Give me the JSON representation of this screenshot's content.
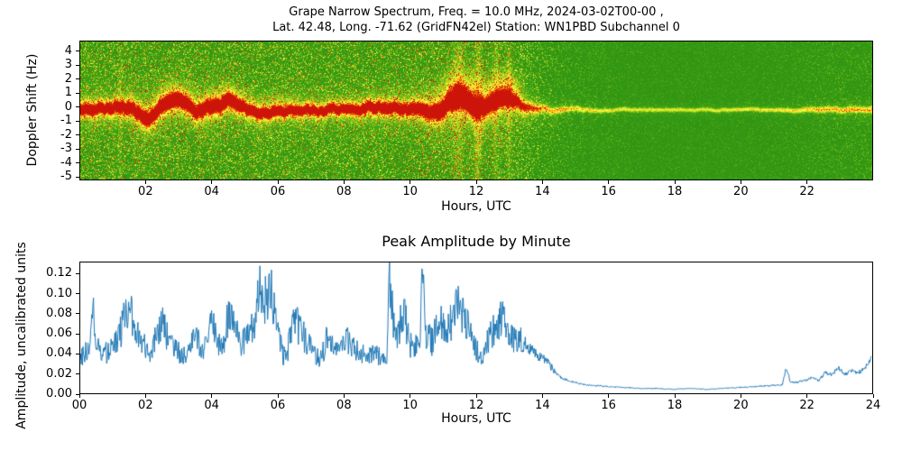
{
  "figure": {
    "background": "#ffffff",
    "text_color": "#000000"
  },
  "chart_data": [
    {
      "type": "heatmap",
      "panel": "doppler-spectrogram",
      "title": "Grape Narrow Spectrum, Freq. = 10.0 MHz, 2024-03-02T00-00 ,",
      "subtitle": "Lat.  42.48, Long. -71.62 (GridFN42el) Station: WN1PBD Subchannel 0",
      "xlabel": "Hours, UTC",
      "ylabel": "Doppler Shift (Hz)",
      "xlim": [
        0,
        24
      ],
      "ylim": [
        -5.25,
        4.75
      ],
      "xticks": [
        2,
        4,
        6,
        8,
        10,
        12,
        14,
        16,
        18,
        20,
        22
      ],
      "xtick_labels": [
        "02",
        "04",
        "06",
        "08",
        "10",
        "12",
        "14",
        "16",
        "18",
        "20",
        "22"
      ],
      "yticks": [
        4,
        3,
        2,
        1,
        0,
        -1,
        -2,
        -3,
        -4,
        -5
      ],
      "ytick_labels": [
        "4",
        "3",
        "2",
        "1",
        "0",
        "-1",
        "-2",
        "-3",
        "-4",
        "-5"
      ],
      "colormap": "green-yellow-orange-red",
      "colormap_stops": [
        [
          0,
          16,
          118,
          16
        ],
        [
          0.35,
          70,
          168,
          22
        ],
        [
          0.55,
          190,
          222,
          30
        ],
        [
          0.72,
          255,
          255,
          70
        ],
        [
          0.86,
          255,
          150,
          0
        ],
        [
          1,
          205,
          20,
          10
        ]
      ],
      "trace_step_hours": 0.5,
      "trace_center_hz": [
        -0.1,
        -0.2,
        -0.1,
        -0.25,
        -0.7,
        0.0,
        0.6,
        -0.4,
        -0.1,
        0.5,
        -0.1,
        -0.3,
        -0.25,
        -0.15,
        -0.25,
        -0.15,
        -0.2,
        -0.2,
        -0.2,
        -0.15,
        -0.1,
        -0.15,
        -0.05,
        0.6,
        0.1,
        0.2,
        0.7,
        -0.1,
        -0.2,
        -0.2,
        -0.2,
        -0.2,
        -0.2,
        -0.2,
        -0.2,
        -0.2,
        -0.2,
        -0.2,
        -0.2,
        -0.2,
        -0.2,
        -0.2,
        -0.2,
        -0.2,
        -0.2,
        -0.2,
        -0.2,
        -0.2,
        -0.2
      ],
      "noise_activity_hourly": [
        0.9,
        0.9,
        0.95,
        0.95,
        0.9,
        0.9,
        0.85,
        0.85,
        0.85,
        0.9,
        0.95,
        1.0,
        1.0,
        0.85,
        0.45,
        0.3,
        0.25,
        0.2,
        0.2,
        0.2,
        0.2,
        0.22,
        0.25,
        0.3,
        0.3
      ],
      "trace_sigma_hz_hourly": [
        0.35,
        0.35,
        0.45,
        0.4,
        0.45,
        0.35,
        0.3,
        0.3,
        0.3,
        0.35,
        0.35,
        0.5,
        0.55,
        0.45,
        0.18,
        0.12,
        0.1,
        0.1,
        0.1,
        0.1,
        0.1,
        0.1,
        0.12,
        0.14,
        0.15
      ],
      "trace_intensity_hourly": [
        1,
        1,
        1,
        1,
        1,
        1,
        1,
        1,
        1,
        1,
        1,
        1,
        1,
        0.9,
        0.6,
        0.5,
        0.45,
        0.42,
        0.4,
        0.4,
        0.45,
        0.5,
        0.55,
        0.6,
        0.6
      ],
      "stripes": [
        {
          "t": 11.45,
          "width": 0.18,
          "strength": 0.18
        },
        {
          "t": 12.05,
          "width": 0.12,
          "strength": 0.2
        },
        {
          "t": 12.6,
          "width": 0.1,
          "strength": 0.14
        },
        {
          "t": 13.0,
          "width": 0.08,
          "strength": 0.16
        },
        {
          "t": 1.2,
          "width": 0.06,
          "strength": 0.12
        }
      ],
      "blobs": [
        {
          "t": 11.6,
          "d": 0.9,
          "st": 0.5,
          "sd": 0.9,
          "strength": 0.38
        },
        {
          "t": 12.9,
          "d": 1.3,
          "st": 0.3,
          "sd": 0.8,
          "strength": 0.34
        },
        {
          "t": 2.8,
          "d": 0.6,
          "st": 0.45,
          "sd": 0.8,
          "strength": 0.16
        },
        {
          "t": 4.5,
          "d": 0.4,
          "st": 0.35,
          "sd": 0.7,
          "strength": 0.14
        },
        {
          "t": 5.9,
          "d": 0.3,
          "st": 0.4,
          "sd": 0.6,
          "strength": 0.12
        }
      ],
      "description": "Green Doppler spectrogram with dense yellow noise speckle and a red/orange carrier trace wandering near 0 Hz from 00-14 UTC; after ~14 UTC the band quiets to a thin yellow trace near -0.2 Hz"
    },
    {
      "type": "line",
      "panel": "peak-amplitude",
      "title": "Peak Amplitude by Minute",
      "xlabel": "Hours, UTC",
      "ylabel": "Amplitude, uncalibrated units",
      "xlim": [
        0,
        24
      ],
      "ylim": [
        0,
        0.132
      ],
      "xticks": [
        0,
        2,
        4,
        6,
        8,
        10,
        12,
        14,
        16,
        18,
        20,
        22,
        24
      ],
      "xtick_labels": [
        "00",
        "02",
        "04",
        "06",
        "08",
        "10",
        "12",
        "14",
        "16",
        "18",
        "20",
        "22",
        "24"
      ],
      "yticks": [
        0.12,
        0.1,
        0.08,
        0.06,
        0.04,
        0.02,
        0
      ],
      "ytick_labels": [
        "0.12",
        "0.10",
        "0.08",
        "0.06",
        "0.04",
        "0.02",
        "0.00"
      ],
      "line_color": "#1f77b4",
      "x": [
        0.0,
        0.15,
        0.3,
        0.38,
        0.45,
        0.6,
        0.8,
        1.0,
        1.2,
        1.35,
        1.5,
        1.65,
        1.8,
        2.0,
        2.15,
        2.3,
        2.5,
        2.65,
        2.8,
        3.0,
        3.2,
        3.4,
        3.6,
        3.8,
        4.0,
        4.15,
        4.3,
        4.5,
        4.7,
        4.9,
        5.1,
        5.3,
        5.45,
        5.6,
        5.75,
        5.9,
        6.05,
        6.15,
        6.3,
        6.5,
        6.7,
        6.9,
        7.1,
        7.3,
        7.5,
        7.7,
        7.9,
        8.1,
        8.3,
        8.5,
        8.7,
        8.9,
        9.1,
        9.3,
        9.38,
        9.5,
        9.65,
        9.8,
        10.0,
        10.15,
        10.3,
        10.38,
        10.5,
        10.7,
        10.85,
        11.0,
        11.15,
        11.3,
        11.45,
        11.6,
        11.8,
        12.0,
        12.2,
        12.4,
        12.6,
        12.8,
        13.0,
        13.2,
        13.4,
        13.6,
        13.8,
        14.0,
        14.2,
        14.4,
        14.6,
        14.8,
        15.0,
        15.3,
        15.6,
        16.0,
        16.5,
        17.0,
        17.5,
        18.0,
        18.5,
        19.0,
        19.5,
        20.0,
        20.5,
        21.0,
        21.3,
        21.42,
        21.55,
        21.8,
        22.0,
        22.2,
        22.4,
        22.6,
        22.8,
        23.0,
        23.2,
        23.4,
        23.6,
        23.8,
        24.0
      ],
      "y": [
        0.035,
        0.04,
        0.045,
        0.115,
        0.05,
        0.045,
        0.04,
        0.05,
        0.06,
        0.075,
        0.085,
        0.065,
        0.055,
        0.045,
        0.04,
        0.055,
        0.07,
        0.055,
        0.045,
        0.04,
        0.035,
        0.06,
        0.05,
        0.045,
        0.075,
        0.05,
        0.045,
        0.08,
        0.06,
        0.05,
        0.055,
        0.07,
        0.105,
        0.09,
        0.11,
        0.08,
        0.06,
        0.035,
        0.045,
        0.075,
        0.06,
        0.05,
        0.04,
        0.035,
        0.055,
        0.045,
        0.04,
        0.055,
        0.045,
        0.04,
        0.035,
        0.04,
        0.035,
        0.03,
        0.12,
        0.07,
        0.06,
        0.085,
        0.05,
        0.045,
        0.05,
        0.125,
        0.06,
        0.05,
        0.08,
        0.07,
        0.065,
        0.075,
        0.09,
        0.08,
        0.065,
        0.045,
        0.035,
        0.055,
        0.065,
        0.075,
        0.06,
        0.05,
        0.055,
        0.045,
        0.04,
        0.035,
        0.03,
        0.02,
        0.015,
        0.012,
        0.01,
        0.008,
        0.007,
        0.006,
        0.005,
        0.004,
        0.004,
        0.003,
        0.004,
        0.003,
        0.004,
        0.005,
        0.006,
        0.007,
        0.008,
        0.025,
        0.01,
        0.011,
        0.012,
        0.015,
        0.012,
        0.02,
        0.018,
        0.025,
        0.018,
        0.022,
        0.02,
        0.024,
        0.035
      ]
    }
  ]
}
